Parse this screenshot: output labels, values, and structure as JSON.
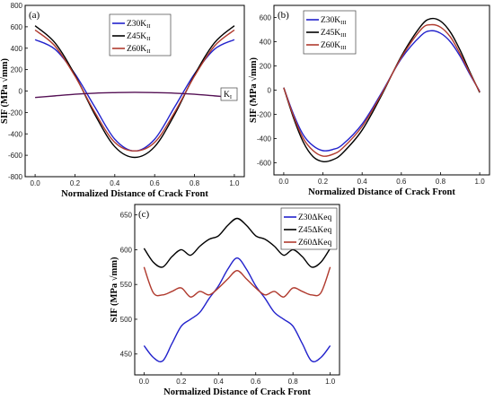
{
  "chart_data": [
    {
      "type": "line",
      "panel_label": "(a)",
      "xlabel": "Normalized Distance of Crack Front",
      "ylabel": "SIF (MPa √mm)",
      "xlim": [
        -0.05,
        1.05
      ],
      "ylim": [
        -800,
        800
      ],
      "xticks": [
        "0.0",
        "0.2",
        "0.4",
        "0.6",
        "0.8",
        "1.0"
      ],
      "yticks": [
        "-800",
        "-600",
        "-400",
        "-200",
        "0",
        "200",
        "400",
        "600",
        "800"
      ],
      "legend_position": "top-center",
      "series": [
        {
          "name": "Z30K",
          "sub": "II",
          "color": "#2222cc",
          "x": [
            0,
            0.1,
            0.2,
            0.3,
            0.4,
            0.5,
            0.6,
            0.7,
            0.8,
            0.9,
            1.0
          ],
          "y": [
            480,
            390,
            160,
            -150,
            -450,
            -560,
            -450,
            -150,
            160,
            390,
            480
          ]
        },
        {
          "name": "Z45K",
          "sub": "II",
          "color": "#000000",
          "x": [
            0,
            0.1,
            0.2,
            0.3,
            0.4,
            0.5,
            0.6,
            0.7,
            0.8,
            0.9,
            1.0
          ],
          "y": [
            610,
            450,
            150,
            -220,
            -520,
            -620,
            -520,
            -220,
            150,
            450,
            610
          ]
        },
        {
          "name": "Z60K",
          "sub": "II",
          "color": "#b03a2e",
          "x": [
            0,
            0.1,
            0.2,
            0.3,
            0.4,
            0.5,
            0.6,
            0.7,
            0.8,
            0.9,
            1.0
          ],
          "y": [
            570,
            420,
            140,
            -200,
            -480,
            -560,
            -480,
            -200,
            140,
            420,
            570
          ]
        },
        {
          "name": "K",
          "sub": "I",
          "color": "#551155",
          "label_only": true,
          "x": [
            0,
            0.1,
            0.2,
            0.3,
            0.4,
            0.5,
            0.6,
            0.7,
            0.8,
            0.9,
            1.0
          ],
          "y": [
            -60,
            -45,
            -30,
            -20,
            -15,
            -12,
            -15,
            -20,
            -30,
            -45,
            -60
          ]
        }
      ]
    },
    {
      "type": "line",
      "panel_label": "(b)",
      "xlabel": "Normalized Distance of Crack Front",
      "ylabel": "SIF (MPa √mm)",
      "xlim": [
        -0.05,
        1.05
      ],
      "ylim": [
        -700,
        700
      ],
      "xticks": [
        "0.0",
        "0.2",
        "0.4",
        "0.6",
        "0.8",
        "1.0"
      ],
      "yticks": [
        "-600",
        "-400",
        "-200",
        "0",
        "200",
        "400",
        "600"
      ],
      "legend_position": "top-left",
      "series": [
        {
          "name": "Z30K",
          "sub": "III",
          "color": "#2222cc",
          "x": [
            0,
            0.05,
            0.1,
            0.15,
            0.2,
            0.25,
            0.3,
            0.4,
            0.5,
            0.6,
            0.7,
            0.75,
            0.8,
            0.85,
            0.9,
            0.95,
            1.0
          ],
          "y": [
            20,
            -200,
            -370,
            -460,
            -500,
            -490,
            -450,
            -280,
            -20,
            260,
            450,
            490,
            470,
            400,
            280,
            130,
            -10
          ]
        },
        {
          "name": "Z45K",
          "sub": "III",
          "color": "#000000",
          "x": [
            0,
            0.05,
            0.1,
            0.15,
            0.2,
            0.25,
            0.3,
            0.4,
            0.5,
            0.6,
            0.7,
            0.75,
            0.8,
            0.85,
            0.9,
            0.95,
            1.0
          ],
          "y": [
            20,
            -230,
            -430,
            -550,
            -590,
            -575,
            -520,
            -330,
            -40,
            280,
            530,
            590,
            570,
            480,
            330,
            150,
            -20
          ]
        },
        {
          "name": "Z60K",
          "sub": "III",
          "color": "#b03a2e",
          "x": [
            0,
            0.05,
            0.1,
            0.15,
            0.2,
            0.25,
            0.3,
            0.4,
            0.5,
            0.6,
            0.7,
            0.75,
            0.8,
            0.85,
            0.9,
            0.95,
            1.0
          ],
          "y": [
            20,
            -215,
            -400,
            -500,
            -545,
            -530,
            -480,
            -300,
            -30,
            270,
            500,
            540,
            520,
            440,
            300,
            140,
            -15
          ]
        }
      ]
    },
    {
      "type": "line",
      "panel_label": "(c)",
      "xlabel": "Normalized Distance of Crack Front",
      "ylabel": "SIF (MPa √mm)",
      "xlim": [
        -0.05,
        1.05
      ],
      "ylim": [
        420,
        665
      ],
      "xticks": [
        "0.0",
        "0.2",
        "0.4",
        "0.6",
        "0.8",
        "1.0"
      ],
      "yticks": [
        "450",
        "500",
        "550",
        "600",
        "650"
      ],
      "legend_position": "top-right",
      "series": [
        {
          "name": "Z30ΔKeq",
          "color": "#2222cc",
          "x": [
            0,
            0.05,
            0.1,
            0.15,
            0.2,
            0.25,
            0.3,
            0.35,
            0.4,
            0.45,
            0.5,
            0.55,
            0.6,
            0.65,
            0.7,
            0.75,
            0.8,
            0.85,
            0.9,
            0.95,
            1.0
          ],
          "y": [
            462,
            445,
            440,
            465,
            490,
            500,
            510,
            530,
            548,
            572,
            588,
            572,
            548,
            530,
            510,
            500,
            490,
            465,
            440,
            445,
            462
          ]
        },
        {
          "name": "Z45ΔKeq",
          "color": "#000000",
          "x": [
            0,
            0.05,
            0.1,
            0.15,
            0.2,
            0.25,
            0.3,
            0.35,
            0.4,
            0.45,
            0.5,
            0.55,
            0.6,
            0.65,
            0.7,
            0.75,
            0.8,
            0.85,
            0.9,
            0.95,
            1.0
          ],
          "y": [
            602,
            582,
            575,
            590,
            600,
            592,
            605,
            615,
            620,
            635,
            645,
            635,
            620,
            615,
            605,
            592,
            600,
            590,
            575,
            582,
            602
          ]
        },
        {
          "name": "Z60ΔKeq",
          "color": "#b03a2e",
          "x": [
            0,
            0.05,
            0.1,
            0.15,
            0.2,
            0.25,
            0.3,
            0.35,
            0.4,
            0.45,
            0.5,
            0.55,
            0.6,
            0.65,
            0.7,
            0.75,
            0.8,
            0.85,
            0.9,
            0.95,
            1.0
          ],
          "y": [
            575,
            538,
            535,
            540,
            545,
            532,
            540,
            535,
            545,
            558,
            570,
            558,
            545,
            535,
            540,
            532,
            545,
            540,
            535,
            538,
            575
          ]
        }
      ]
    }
  ]
}
